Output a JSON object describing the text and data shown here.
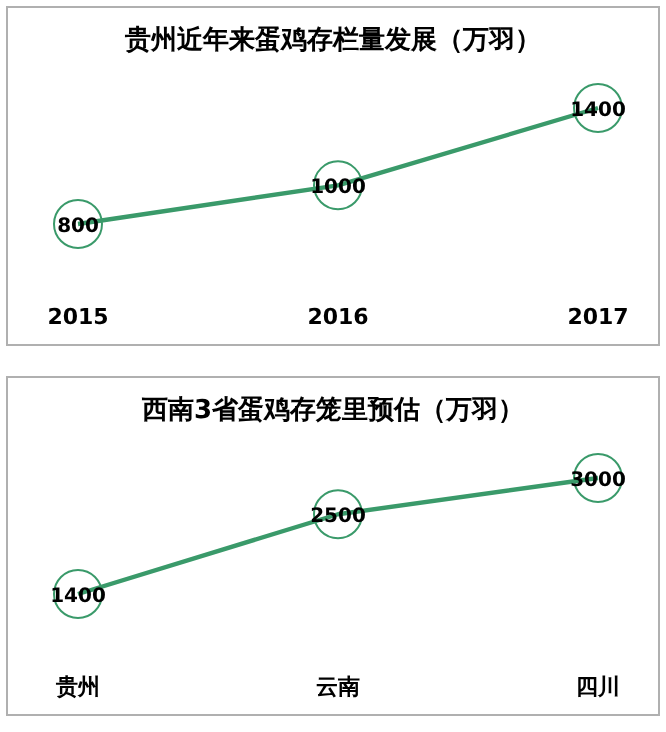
{
  "chart_data": [
    {
      "type": "line",
      "title": "贵州近年来蛋鸡存栏量发展（万羽）",
      "categories": [
        "2015",
        "2016",
        "2017"
      ],
      "series": [
        {
          "color": "#3a9a6a",
          "values": [
            800,
            1000,
            1400
          ]
        }
      ],
      "data_labels": true,
      "marker": "circle"
    },
    {
      "type": "line",
      "title": "西南3省蛋鸡存笼里预估（万羽）",
      "categories": [
        "贵州",
        "云南",
        "四川"
      ],
      "series": [
        {
          "color": "#3a9a6a",
          "values": [
            1400,
            2500,
            3000
          ]
        }
      ],
      "data_labels": true,
      "marker": "circle"
    }
  ]
}
